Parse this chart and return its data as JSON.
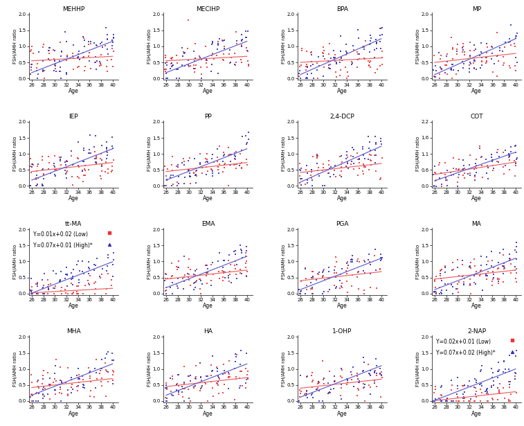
{
  "titles": [
    "MEHHP",
    "MECIHP",
    "BPA",
    "MP",
    "IEP",
    "PP",
    "2,4-DCP",
    "COT",
    "tt-MA",
    "EMA",
    "PGA",
    "MA",
    "MHA",
    "HA",
    "1-OHP",
    "2-NAP"
  ],
  "subplot_labels_with_eq": {
    "tt-MA": [
      "Y=0.01x+0.02 (Low)",
      "Y=0.07x+0.01 (High)*"
    ],
    "2-NAP": [
      "Y=0.02x+0.01 (Low)",
      "Y=0.07x+0.02 (High)*"
    ]
  },
  "low_color": "#EE3333",
  "high_color": "#3333BB",
  "low_line_color": "#EE6666",
  "high_line_color": "#6666CC",
  "ylabel": "FSH/AMH ratio",
  "xlabel": "Age",
  "background_color": "#ffffff",
  "font_size_title": 6.5,
  "font_size_label": 5.5,
  "font_size_tick": 5,
  "font_size_eq": 5.5,
  "subplot_params": {
    "MEHHP": [
      0.01,
      0.07,
      0.55,
      0.18
    ],
    "MECIHP": [
      0.01,
      0.07,
      0.55,
      0.18
    ],
    "BPA": [
      0.01,
      0.08,
      0.5,
      0.12
    ],
    "MP": [
      0.02,
      0.08,
      0.5,
      0.12
    ],
    "IEP": [
      0.02,
      0.07,
      0.45,
      0.18
    ],
    "PP": [
      0.02,
      0.07,
      0.45,
      0.18
    ],
    "2,4-DCP": [
      0.02,
      0.08,
      0.42,
      0.12
    ],
    "COT": [
      0.03,
      0.07,
      0.4,
      0.18
    ],
    "tt-MA": [
      0.01,
      0.07,
      0.02,
      0.01
    ],
    "EMA": [
      0.02,
      0.07,
      0.45,
      0.18
    ],
    "PGA": [
      0.02,
      0.07,
      0.4,
      0.12
    ],
    "MA": [
      0.02,
      0.07,
      0.45,
      0.12
    ],
    "MHA": [
      0.02,
      0.07,
      0.42,
      0.18
    ],
    "HA": [
      0.02,
      0.07,
      0.45,
      0.18
    ],
    "1-OHP": [
      0.02,
      0.07,
      0.4,
      0.12
    ],
    "2-NAP": [
      0.02,
      0.07,
      0.01,
      0.02
    ]
  },
  "ylims": {
    "MEHHP": [
      0.0,
      2.0
    ],
    "MECIHP": [
      0.0,
      2.0
    ],
    "BPA": [
      0.0,
      2.0
    ],
    "MP": [
      0.0,
      2.0
    ],
    "IEP": [
      0.0,
      2.0
    ],
    "PP": [
      0.0,
      2.0
    ],
    "2,4-DCP": [
      0.0,
      2.0
    ],
    "COT": [
      0.0,
      2.2
    ],
    "tt-MA": [
      0.0,
      2.0
    ],
    "EMA": [
      0.0,
      2.0
    ],
    "PGA": [
      0.0,
      2.0
    ],
    "MA": [
      0.0,
      2.0
    ],
    "MHA": [
      0.0,
      2.0
    ],
    "HA": [
      0.0,
      2.0
    ],
    "1-OHP": [
      0.0,
      2.0
    ],
    "2-NAP": [
      0.0,
      2.0
    ]
  }
}
